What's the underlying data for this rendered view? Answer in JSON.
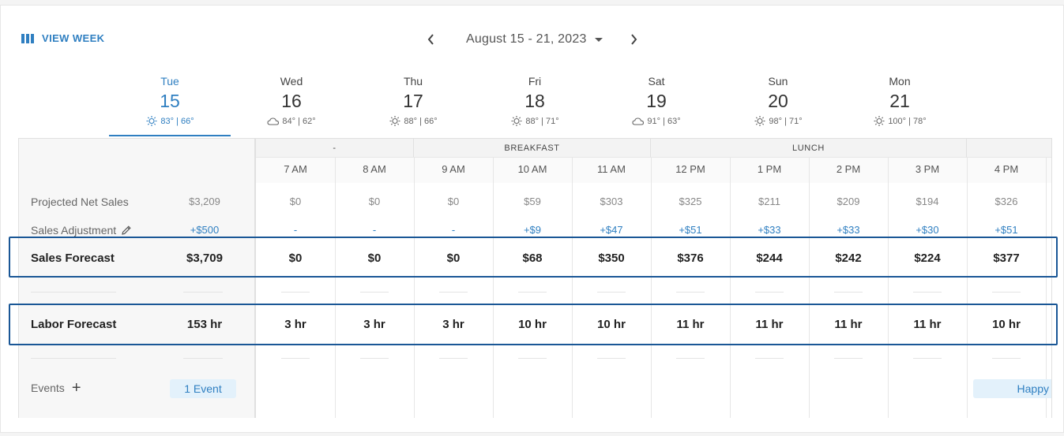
{
  "toolbar": {
    "view_label": "VIEW WEEK",
    "date_range": "August 15 - 21, 2023"
  },
  "days": [
    {
      "name": "Tue",
      "num": "15",
      "temps": "83° | 66°",
      "icon": "sun-icon"
    },
    {
      "name": "Wed",
      "num": "16",
      "temps": "84° | 62°",
      "icon": "cloud-icon"
    },
    {
      "name": "Thu",
      "num": "17",
      "temps": "88° | 66°",
      "icon": "sun-icon"
    },
    {
      "name": "Fri",
      "num": "18",
      "temps": "88° | 71°",
      "icon": "sun-icon"
    },
    {
      "name": "Sat",
      "num": "19",
      "temps": "91° | 63°",
      "icon": "cloud-icon"
    },
    {
      "name": "Sun",
      "num": "20",
      "temps": "98° | 71°",
      "icon": "sun-icon"
    },
    {
      "name": "Mon",
      "num": "21",
      "temps": "100° | 78°",
      "icon": "sun-icon"
    }
  ],
  "dayparts": [
    "-",
    "BREAKFAST",
    "LUNCH",
    ""
  ],
  "hours": [
    "7 AM",
    "8 AM",
    "9 AM",
    "10 AM",
    "11 AM",
    "12 PM",
    "1 PM",
    "2 PM",
    "3 PM",
    "4 PM"
  ],
  "rows": {
    "projected": {
      "label": "Projected Net Sales",
      "total": "$3,209",
      "values": [
        "$0",
        "$0",
        "$0",
        "$59",
        "$303",
        "$325",
        "$211",
        "$209",
        "$194",
        "$326"
      ]
    },
    "adjustment": {
      "label": "Sales Adjustment",
      "total": "+$500",
      "values": [
        "-",
        "-",
        "-",
        "+$9",
        "+$47",
        "+$51",
        "+$33",
        "+$33",
        "+$30",
        "+$51"
      ]
    },
    "sales_forecast": {
      "label": "Sales Forecast",
      "total": "$3,709",
      "values": [
        "$0",
        "$0",
        "$0",
        "$68",
        "$350",
        "$376",
        "$244",
        "$242",
        "$224",
        "$377"
      ]
    },
    "labor_forecast": {
      "label": "Labor Forecast",
      "total": "153 hr",
      "values": [
        "3 hr",
        "3 hr",
        "3 hr",
        "10 hr",
        "10 hr",
        "11 hr",
        "11 hr",
        "11 hr",
        "11 hr",
        "10 hr"
      ]
    }
  },
  "events": {
    "label": "Events",
    "total_chip": "1 Event",
    "hour_chip": "Happy"
  },
  "colors": {
    "accent": "#2f7fc1",
    "highlight_box": "#1a5796",
    "chip_bg": "#e3f1fb"
  }
}
